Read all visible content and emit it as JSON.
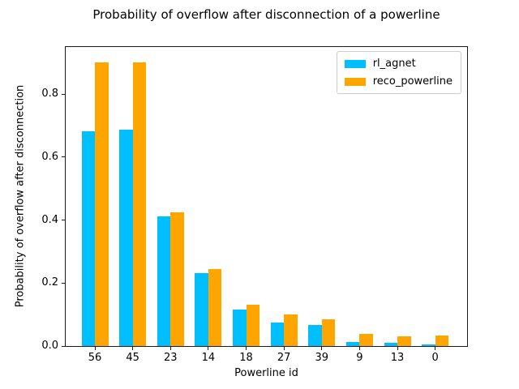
{
  "chart_data": {
    "type": "bar",
    "title": "Probability of overflow after disconnection of a powerline",
    "xlabel": "Powerline id",
    "ylabel": "Probability of overflow after disconnection",
    "categories": [
      "56",
      "45",
      "23",
      "14",
      "18",
      "27",
      "39",
      "9",
      "13",
      "0"
    ],
    "series": [
      {
        "name": "rl_agnet",
        "color": "#00bfff",
        "values": [
          0.682,
          0.687,
          0.413,
          0.232,
          0.117,
          0.075,
          0.066,
          0.012,
          0.011,
          0.005
        ]
      },
      {
        "name": "reco_powerline",
        "color": "#ffa500",
        "values": [
          0.902,
          0.9,
          0.426,
          0.245,
          0.132,
          0.1,
          0.086,
          0.038,
          0.03,
          0.033
        ]
      }
    ],
    "ylim": [
      0,
      0.95
    ],
    "yticks": [
      "0.0",
      "0.2",
      "0.4",
      "0.6",
      "0.8"
    ],
    "grid": false,
    "legend_position": "upper right",
    "bar_width_fraction": 0.35,
    "colors": {
      "spine": "#1a1a1a",
      "background": "#ffffff",
      "legend_border": "#cccccc"
    }
  }
}
